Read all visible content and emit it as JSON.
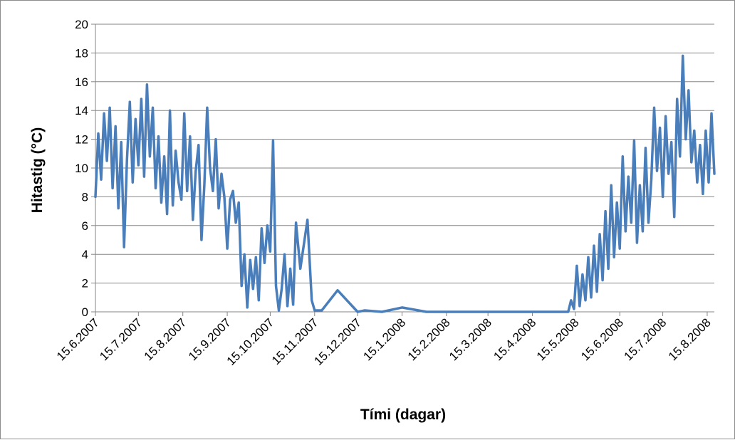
{
  "chart_data": {
    "type": "line",
    "title": "",
    "xlabel": "Tími (dagar)",
    "ylabel": "Hitastig (°C)",
    "ylim": [
      0,
      20
    ],
    "yticks": [
      "0",
      "2",
      "4",
      "6",
      "8",
      "10",
      "12",
      "14",
      "16",
      "18",
      "20"
    ],
    "xlim": [
      "2007-06-15",
      "2008-08-20"
    ],
    "xtick_labels": [
      "15.6.2007",
      "15.7.2007",
      "15.8.2007",
      "15.9.2007",
      "15.10.2007",
      "15.11.2007",
      "15.12.2007",
      "15.1.2008",
      "15.2.2008",
      "15.3.2008",
      "15.4.2008",
      "15.5.2008",
      "15.6.2008",
      "15.7.2008",
      "15.8.2008"
    ],
    "xtick_dates": [
      "2007-06-15",
      "2007-07-15",
      "2007-08-15",
      "2007-09-15",
      "2007-10-15",
      "2007-11-15",
      "2007-12-15",
      "2008-01-15",
      "2008-02-15",
      "2008-03-15",
      "2008-04-15",
      "2008-05-15",
      "2008-06-15",
      "2008-07-15",
      "2008-08-15"
    ],
    "grid": true,
    "legend": "none",
    "series": [
      {
        "color": "#4a7ebb",
        "x": [
          "2007-06-15",
          "2007-06-17",
          "2007-06-19",
          "2007-06-21",
          "2007-06-23",
          "2007-06-25",
          "2007-06-27",
          "2007-06-29",
          "2007-07-01",
          "2007-07-03",
          "2007-07-05",
          "2007-07-07",
          "2007-07-09",
          "2007-07-11",
          "2007-07-13",
          "2007-07-15",
          "2007-07-17",
          "2007-07-19",
          "2007-07-21",
          "2007-07-23",
          "2007-07-25",
          "2007-07-27",
          "2007-07-29",
          "2007-07-31",
          "2007-08-02",
          "2007-08-04",
          "2007-08-06",
          "2007-08-08",
          "2007-08-10",
          "2007-08-12",
          "2007-08-14",
          "2007-08-16",
          "2007-08-18",
          "2007-08-20",
          "2007-08-22",
          "2007-08-24",
          "2007-08-26",
          "2007-08-28",
          "2007-08-30",
          "2007-09-01",
          "2007-09-03",
          "2007-09-05",
          "2007-09-07",
          "2007-09-09",
          "2007-09-11",
          "2007-09-13",
          "2007-09-15",
          "2007-09-17",
          "2007-09-19",
          "2007-09-21",
          "2007-09-23",
          "2007-09-25",
          "2007-09-27",
          "2007-09-29",
          "2007-10-01",
          "2007-10-03",
          "2007-10-05",
          "2007-10-07",
          "2007-10-09",
          "2007-10-11",
          "2007-10-13",
          "2007-10-15",
          "2007-10-17",
          "2007-10-19",
          "2007-10-21",
          "2007-10-23",
          "2007-10-25",
          "2007-10-27",
          "2007-10-29",
          "2007-10-31",
          "2007-11-02",
          "2007-11-05",
          "2007-11-10",
          "2007-11-13",
          "2007-11-15",
          "2007-11-20",
          "2007-12-01",
          "2007-12-15",
          "2007-12-20",
          "2008-01-01",
          "2008-01-15",
          "2008-02-01",
          "2008-03-01",
          "2008-04-01",
          "2008-05-01",
          "2008-05-08",
          "2008-05-10",
          "2008-05-12",
          "2008-05-14",
          "2008-05-16",
          "2008-05-18",
          "2008-05-20",
          "2008-05-22",
          "2008-05-24",
          "2008-05-26",
          "2008-05-28",
          "2008-05-30",
          "2008-06-01",
          "2008-06-03",
          "2008-06-05",
          "2008-06-07",
          "2008-06-09",
          "2008-06-11",
          "2008-06-13",
          "2008-06-15",
          "2008-06-17",
          "2008-06-19",
          "2008-06-21",
          "2008-06-23",
          "2008-06-25",
          "2008-06-27",
          "2008-06-29",
          "2008-07-01",
          "2008-07-03",
          "2008-07-05",
          "2008-07-07",
          "2008-07-09",
          "2008-07-11",
          "2008-07-13",
          "2008-07-15",
          "2008-07-17",
          "2008-07-19",
          "2008-07-21",
          "2008-07-23",
          "2008-07-25",
          "2008-07-27",
          "2008-07-29",
          "2008-07-31",
          "2008-08-02",
          "2008-08-04",
          "2008-08-06",
          "2008-08-08",
          "2008-08-10",
          "2008-08-12",
          "2008-08-14",
          "2008-08-16",
          "2008-08-18",
          "2008-08-20"
        ],
        "y": [
          8.0,
          12.4,
          9.2,
          13.8,
          10.5,
          14.2,
          8.6,
          12.9,
          7.2,
          11.8,
          4.5,
          10.6,
          14.6,
          9.0,
          13.4,
          10.2,
          14.8,
          9.4,
          15.8,
          10.8,
          14.2,
          8.6,
          12.2,
          7.6,
          10.8,
          6.8,
          14.0,
          7.4,
          11.2,
          9.0,
          7.8,
          13.8,
          8.4,
          12.2,
          6.4,
          9.8,
          11.6,
          5.0,
          8.8,
          14.2,
          10.0,
          8.4,
          12.0,
          7.2,
          9.6,
          8.0,
          4.4,
          7.8,
          8.4,
          6.2,
          7.6,
          1.8,
          4.0,
          0.3,
          3.6,
          1.6,
          3.8,
          0.8,
          5.8,
          3.4,
          6.0,
          4.2,
          11.9,
          1.8,
          0.1,
          1.6,
          4.0,
          0.4,
          3.0,
          0.5,
          6.2,
          3.0,
          6.4,
          0.8,
          0.1,
          0.1,
          1.5,
          0.0,
          0.1,
          0.0,
          0.3,
          0.0,
          0.0,
          0.0,
          0.0,
          0.0,
          0.0,
          0.8,
          0.2,
          3.2,
          0.4,
          2.6,
          0.8,
          3.8,
          1.0,
          4.6,
          1.4,
          5.4,
          2.2,
          7.0,
          3.0,
          8.8,
          3.8,
          7.6,
          4.4,
          10.8,
          5.6,
          9.4,
          6.2,
          11.9,
          4.8,
          8.8,
          5.6,
          11.4,
          6.2,
          9.2,
          14.2,
          9.8,
          12.8,
          8.0,
          13.6,
          9.6,
          11.8,
          6.6,
          14.8,
          10.8,
          17.8,
          12.0,
          15.4,
          10.4,
          12.6,
          9.0,
          11.6,
          8.2,
          12.6,
          9.0,
          13.8,
          9.6
        ]
      }
    ]
  }
}
